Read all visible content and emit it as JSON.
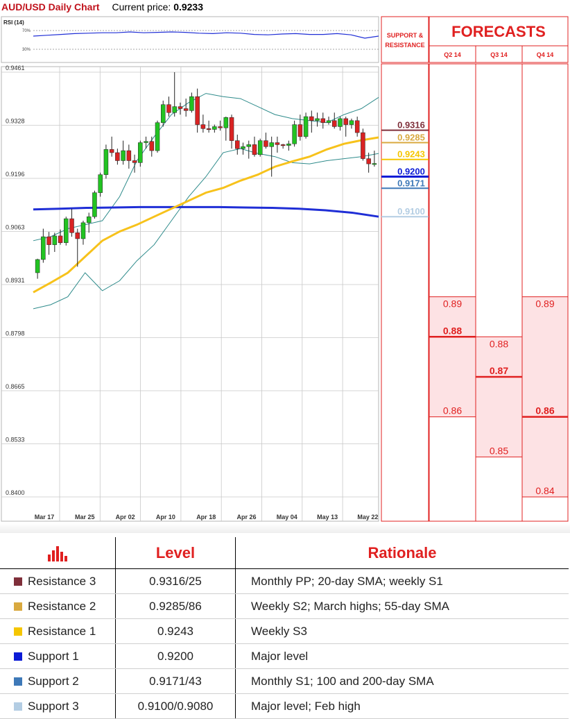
{
  "header": {
    "title": "AUD/USD Daily Chart",
    "current_price_label": "Current price:",
    "current_price": "0.9233"
  },
  "rsi": {
    "label": "RSI (14)",
    "upper": "70%",
    "lower": "30%"
  },
  "support_resistance_label": [
    "SUPPORT &",
    "RESISTANCE"
  ],
  "forecasts": {
    "title": "FORECASTS",
    "quarters": [
      "Q2 14",
      "Q3 14",
      "Q4 14"
    ]
  },
  "colors": {
    "resistance_3": "#7f2f3a",
    "resistance_2": "#d9a93f",
    "resistance_1": "#f5c600",
    "support_1": "#0b1bd6",
    "support_2": "#3e79b8",
    "support_3": "#b3cde3",
    "forecast_red": "#e02020",
    "forecast_fill": "#fde2e4",
    "sma55": "#f7c21b",
    "sma200": "#1f2ed6",
    "bollinger": "#2e8b8b",
    "bull": "#22c322",
    "bear": "#d92323"
  },
  "chart_data": {
    "type": "candlestick",
    "title": "AUD/USD Daily Chart",
    "ylim": [
      0.84,
      0.9461
    ],
    "y_ticks": [
      "0.9461",
      "0.9328",
      "0.9196",
      "0.9063",
      "0.8931",
      "0.8798",
      "0.8665",
      "0.8533",
      "0.8400"
    ],
    "x_ticks": [
      "Mar 17",
      "Mar 25",
      "Apr 02",
      "Apr 10",
      "Apr 18",
      "Apr 26",
      "May 04",
      "May 13",
      "May 22"
    ],
    "candles": [
      [
        0.896,
        0.8995,
        0.8945,
        0.8993
      ],
      [
        0.8993,
        0.907,
        0.8985,
        0.905
      ],
      [
        0.905,
        0.9062,
        0.9005,
        0.903
      ],
      [
        0.903,
        0.906,
        0.9012,
        0.9052
      ],
      [
        0.9052,
        0.9068,
        0.903,
        0.9035
      ],
      [
        0.9035,
        0.91,
        0.9028,
        0.9095
      ],
      [
        0.9095,
        0.912,
        0.905,
        0.906
      ],
      [
        0.906,
        0.907,
        0.8975,
        0.9045
      ],
      [
        0.9045,
        0.909,
        0.903,
        0.9085
      ],
      [
        0.9085,
        0.911,
        0.906,
        0.91
      ],
      [
        0.91,
        0.9165,
        0.9095,
        0.916
      ],
      [
        0.916,
        0.921,
        0.915,
        0.9205
      ],
      [
        0.9205,
        0.928,
        0.9195,
        0.9268
      ],
      [
        0.9268,
        0.93,
        0.925,
        0.926
      ],
      [
        0.926,
        0.927,
        0.923,
        0.924
      ],
      [
        0.924,
        0.929,
        0.923,
        0.9265
      ],
      [
        0.9265,
        0.928,
        0.922,
        0.924
      ],
      [
        0.924,
        0.9255,
        0.921,
        0.9235
      ],
      [
        0.9235,
        0.929,
        0.9225,
        0.9285
      ],
      [
        0.9285,
        0.93,
        0.927,
        0.9288
      ],
      [
        0.9288,
        0.93,
        0.925,
        0.9265
      ],
      [
        0.9265,
        0.934,
        0.926,
        0.9335
      ],
      [
        0.9335,
        0.939,
        0.9325,
        0.938
      ],
      [
        0.938,
        0.94,
        0.935,
        0.936
      ],
      [
        0.936,
        0.9461,
        0.935,
        0.9375
      ],
      [
        0.9375,
        0.9385,
        0.9355,
        0.937
      ],
      [
        0.937,
        0.9395,
        0.935,
        0.9365
      ],
      [
        0.9365,
        0.941,
        0.936,
        0.94
      ],
      [
        0.94,
        0.942,
        0.931,
        0.933
      ],
      [
        0.933,
        0.9355,
        0.931,
        0.932
      ],
      [
        0.932,
        0.934,
        0.931,
        0.9318
      ],
      [
        0.9318,
        0.933,
        0.931,
        0.9325
      ],
      [
        0.9325,
        0.934,
        0.9315,
        0.9322
      ],
      [
        0.9322,
        0.935,
        0.929,
        0.9348
      ],
      [
        0.9348,
        0.9355,
        0.927,
        0.929
      ],
      [
        0.929,
        0.9305,
        0.9255,
        0.927
      ],
      [
        0.927,
        0.9285,
        0.9255,
        0.9275
      ],
      [
        0.9275,
        0.929,
        0.9245,
        0.928
      ],
      [
        0.928,
        0.93,
        0.925,
        0.9255
      ],
      [
        0.9255,
        0.9295,
        0.925,
        0.929
      ],
      [
        0.929,
        0.931,
        0.927,
        0.9275
      ],
      [
        0.9275,
        0.93,
        0.92,
        0.9285
      ],
      [
        0.9285,
        0.93,
        0.926,
        0.928
      ],
      [
        0.928,
        0.9282,
        0.927,
        0.9278
      ],
      [
        0.9278,
        0.929,
        0.9265,
        0.9282
      ],
      [
        0.9282,
        0.934,
        0.9275,
        0.933
      ],
      [
        0.933,
        0.9355,
        0.929,
        0.93
      ],
      [
        0.93,
        0.936,
        0.9295,
        0.935
      ],
      [
        0.935,
        0.9365,
        0.931,
        0.934
      ],
      [
        0.934,
        0.936,
        0.9325,
        0.9345
      ],
      [
        0.9345,
        0.936,
        0.932,
        0.9335
      ],
      [
        0.9335,
        0.935,
        0.933,
        0.934
      ],
      [
        0.934,
        0.936,
        0.932,
        0.9325
      ],
      [
        0.9325,
        0.935,
        0.9315,
        0.9345
      ],
      [
        0.9345,
        0.935,
        0.93,
        0.933
      ],
      [
        0.933,
        0.9345,
        0.932,
        0.934
      ],
      [
        0.934,
        0.935,
        0.93,
        0.931
      ],
      [
        0.931,
        0.932,
        0.924,
        0.9245
      ],
      [
        0.9245,
        0.926,
        0.921,
        0.9232
      ],
      [
        0.9232,
        0.9265,
        0.9225,
        0.9233
      ]
    ],
    "sma_55": [
      0.8911,
      0.8935,
      0.896,
      0.9,
      0.904,
      0.9063,
      0.908,
      0.91,
      0.912,
      0.914,
      0.916,
      0.9172,
      0.919,
      0.9205,
      0.9225,
      0.9238,
      0.925,
      0.9268,
      0.9282,
      0.9291,
      0.9298
    ],
    "sma_200": [
      0.9118,
      0.912,
      0.9122,
      0.9123,
      0.9124,
      0.9124,
      0.9124,
      0.9124,
      0.9123,
      0.9122,
      0.912,
      0.9116,
      0.911,
      0.91
    ],
    "bollinger_upper": [
      0.904,
      0.905,
      0.907,
      0.908,
      0.909,
      0.915,
      0.924,
      0.93,
      0.9355,
      0.9385,
      0.9408,
      0.94,
      0.9395,
      0.9375,
      0.9355,
      0.9345,
      0.934,
      0.9335,
      0.9355,
      0.937,
      0.9398
    ],
    "bollinger_lower": [
      0.887,
      0.888,
      0.89,
      0.896,
      0.8915,
      0.894,
      0.899,
      0.903,
      0.909,
      0.915,
      0.92,
      0.926,
      0.927,
      0.9258,
      0.925,
      0.9235,
      0.9232,
      0.924,
      0.9245,
      0.925,
      0.9258
    ],
    "rsi_values": [
      60,
      62,
      64,
      66,
      67,
      68,
      68,
      70,
      68,
      69,
      70,
      69,
      67,
      66,
      68,
      67,
      64,
      63,
      65,
      66,
      64,
      64,
      66,
      63,
      55,
      60
    ],
    "levels": [
      {
        "name": "Resistance 3",
        "value": "0.9316"
      },
      {
        "name": "Resistance 2",
        "value": "0.9285"
      },
      {
        "name": "Resistance 1",
        "value": "0.9243"
      },
      {
        "name": "Support 1",
        "value": "0.9200"
      },
      {
        "name": "Support 2",
        "value": "0.9171"
      },
      {
        "name": "Support 3",
        "value": "0.9100"
      }
    ],
    "forecast_columns": [
      {
        "quarter": "Q2 14",
        "high": "0.89",
        "mid": "0.88",
        "low": "0.86"
      },
      {
        "quarter": "Q3 14",
        "high": "0.88",
        "mid": "0.87",
        "low": "0.85"
      },
      {
        "quarter": "Q4 14",
        "high": "0.89",
        "mid": "0.86",
        "low": "0.84"
      }
    ]
  },
  "table": {
    "headers": [
      "Level",
      "Rationale"
    ],
    "rows": [
      {
        "name": "Resistance 3",
        "level": "0.9316/25",
        "rationale": "Monthly PP; 20-day SMA; weekly S1"
      },
      {
        "name": "Resistance 2",
        "level": "0.9285/86",
        "rationale": "Weekly S2; March highs; 55-day SMA"
      },
      {
        "name": "Resistance 1",
        "level": "0.9243",
        "rationale": "Weekly S3"
      },
      {
        "name": "Support 1",
        "level": "0.9200",
        "rationale": "Major level"
      },
      {
        "name": "Support 2",
        "level": "0.9171/43",
        "rationale": "Monthly S1; 100 and 200-day SMA"
      },
      {
        "name": "Support 3",
        "level": "0.9100/0.9080",
        "rationale": "Major level; Feb high"
      }
    ]
  }
}
